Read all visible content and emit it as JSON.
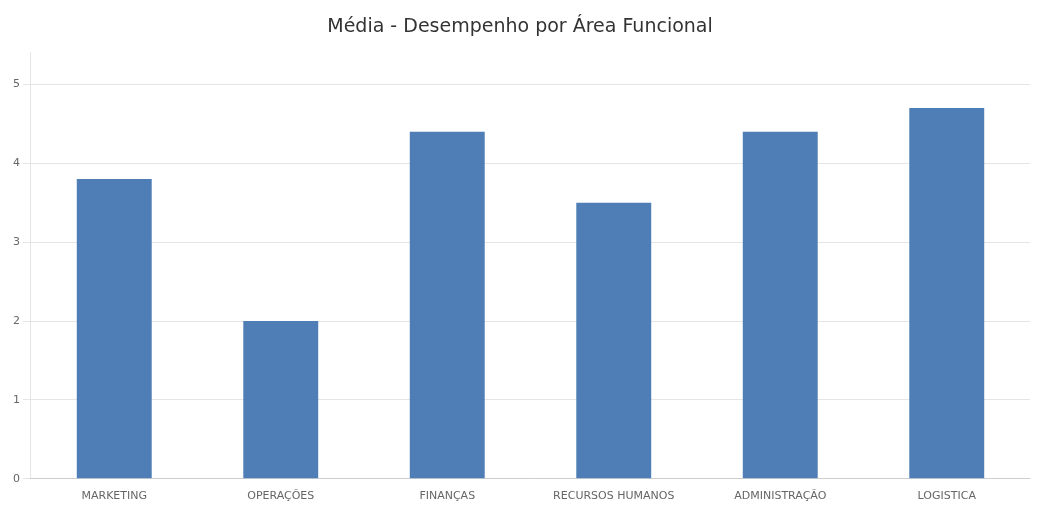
{
  "chart_data": {
    "type": "bar",
    "title": "Média - Desempenho por Área Funcional",
    "categories": [
      "MARKETING",
      "OPERAÇÕES",
      "FINANÇAS",
      "RECURSOS HUMANOS",
      "ADMINISTRAÇÃO",
      "LOGISTICA"
    ],
    "values": [
      3.8,
      2.0,
      4.4,
      3.5,
      4.4,
      4.7
    ],
    "color": "#4e7eb5",
    "ylim": [
      0,
      5.4
    ],
    "yticks": [
      0,
      1,
      2,
      3,
      4,
      5
    ],
    "grid": true
  }
}
